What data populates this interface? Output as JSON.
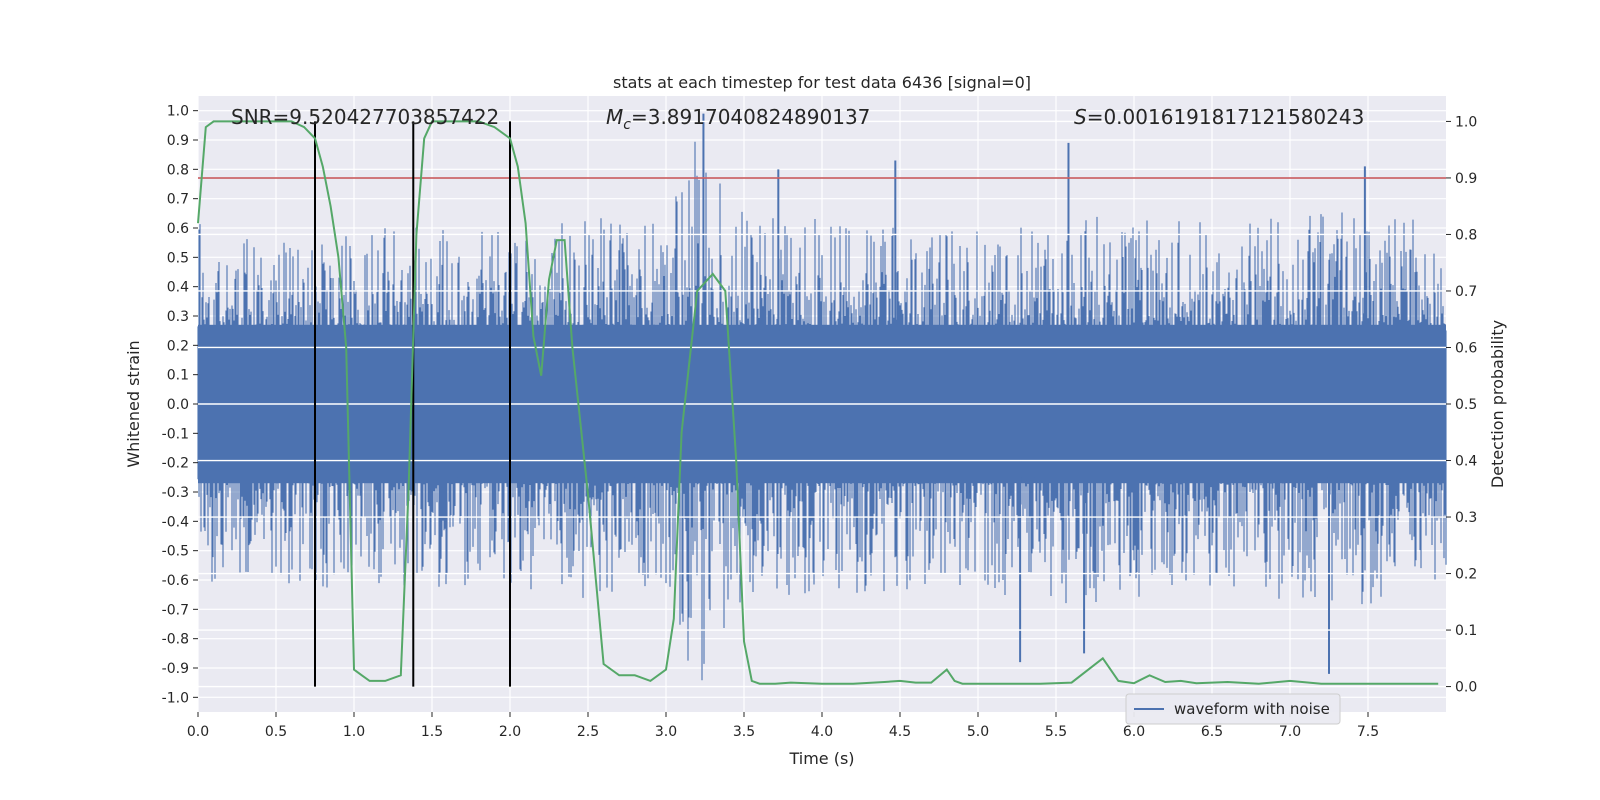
{
  "chart_data": {
    "type": "line",
    "title": "stats at each timestep for test data 6436 [signal=0]",
    "xlabel": "Time (s)",
    "ylabel_left": "Whitened strain",
    "ylabel_right": "Detection probability",
    "xlim": [
      0,
      8
    ],
    "ylim_left": [
      -1.05,
      1.05
    ],
    "ylim_right": [
      -0.045,
      1.045
    ],
    "x_ticks": [
      "0.0",
      "0.5",
      "1.0",
      "1.5",
      "2.0",
      "2.5",
      "3.0",
      "3.5",
      "4.0",
      "4.5",
      "5.0",
      "5.5",
      "6.0",
      "6.5",
      "7.0",
      "7.5"
    ],
    "y_ticks_left": [
      "1.0",
      "0.9",
      "0.8",
      "0.7",
      "0.6",
      "0.5",
      "0.4",
      "0.3",
      "0.2",
      "0.1",
      "0.0",
      "-0.1",
      "-0.2",
      "-0.3",
      "-0.4",
      "-0.5",
      "-0.6",
      "-0.7",
      "-0.8",
      "-0.9",
      "-1.0"
    ],
    "y_ticks_right": [
      "1.0",
      "0.9",
      "0.8",
      "0.7",
      "0.6",
      "0.5",
      "0.4",
      "0.3",
      "0.2",
      "0.1",
      "0.0"
    ],
    "grid": true,
    "legend_position": "lower-right",
    "annotations": {
      "snr": "SNR=9.520427703857422",
      "mc_symbol": "M",
      "mc_sub": "c",
      "mc_value": "=3.8917040824890137",
      "s_symbol": "S",
      "s_value": "=0.0016191817121580243"
    },
    "threshold": {
      "y": 0.9,
      "axis": "right",
      "color": "#c44e52"
    },
    "vertical_markers": [
      0.75,
      1.38,
      2.0
    ],
    "marker_color": "#000000",
    "series": [
      {
        "name": "waveform with noise",
        "axis": "left",
        "color": "#4c72b0",
        "note_amplitude_envelope": {
          "points": [
            [
              0.0,
              0.6
            ],
            [
              0.2,
              0.55
            ],
            [
              0.5,
              0.55
            ],
            [
              0.7,
              0.6
            ],
            [
              1.0,
              0.55
            ],
            [
              1.3,
              0.6
            ],
            [
              1.5,
              0.58
            ],
            [
              2.0,
              0.58
            ],
            [
              2.5,
              0.62
            ],
            [
              3.0,
              0.6
            ],
            [
              3.24,
              0.99
            ],
            [
              3.5,
              0.62
            ],
            [
              4.0,
              0.62
            ],
            [
              4.5,
              0.6
            ],
            [
              5.0,
              0.6
            ],
            [
              5.5,
              0.65
            ],
            [
              6.0,
              0.62
            ],
            [
              6.5,
              0.6
            ],
            [
              7.0,
              0.62
            ],
            [
              7.5,
              0.65
            ],
            [
              8.0,
              0.6
            ]
          ],
          "peaks": [
            {
              "x": 3.24,
              "y": 0.99
            },
            {
              "x": 4.47,
              "y": 0.83
            },
            {
              "x": 5.58,
              "y": 0.89
            },
            {
              "x": 7.48,
              "y": 0.81
            },
            {
              "x": 3.72,
              "y": 0.8
            },
            {
              "x": 7.25,
              "y": -0.92
            },
            {
              "x": 5.27,
              "y": -0.88
            },
            {
              "x": 5.68,
              "y": -0.85
            }
          ]
        }
      },
      {
        "name": "",
        "axis": "right",
        "color": "#55a868",
        "x": [
          0.0,
          0.05,
          0.1,
          0.2,
          0.3,
          0.5,
          0.6,
          0.68,
          0.75,
          0.8,
          0.85,
          0.9,
          0.95,
          1.0,
          1.05,
          1.1,
          1.2,
          1.3,
          1.35,
          1.4,
          1.45,
          1.5,
          1.55,
          1.6,
          1.7,
          1.8,
          1.9,
          2.0,
          2.05,
          2.1,
          2.15,
          2.2,
          2.25,
          2.3,
          2.35,
          2.4,
          2.5,
          2.6,
          2.7,
          2.8,
          2.9,
          3.0,
          3.05,
          3.1,
          3.2,
          3.3,
          3.38,
          3.45,
          3.5,
          3.55,
          3.6,
          3.7,
          3.8,
          4.0,
          4.2,
          4.4,
          4.5,
          4.6,
          4.7,
          4.8,
          4.85,
          4.9,
          5.0,
          5.2,
          5.4,
          5.6,
          5.8,
          5.9,
          6.0,
          6.1,
          6.2,
          6.3,
          6.4,
          6.6,
          6.8,
          7.0,
          7.2,
          7.4,
          7.6,
          7.8,
          7.95
        ],
        "values": [
          0.82,
          0.99,
          1.0,
          1.0,
          1.0,
          1.0,
          1.0,
          0.99,
          0.97,
          0.92,
          0.85,
          0.76,
          0.6,
          0.03,
          0.02,
          0.01,
          0.01,
          0.02,
          0.35,
          0.8,
          0.97,
          1.0,
          1.0,
          1.0,
          1.0,
          1.0,
          0.99,
          0.97,
          0.92,
          0.82,
          0.62,
          0.55,
          0.72,
          0.79,
          0.79,
          0.6,
          0.34,
          0.04,
          0.02,
          0.02,
          0.01,
          0.03,
          0.12,
          0.45,
          0.7,
          0.73,
          0.7,
          0.4,
          0.08,
          0.01,
          0.005,
          0.005,
          0.007,
          0.005,
          0.005,
          0.008,
          0.01,
          0.007,
          0.007,
          0.03,
          0.01,
          0.005,
          0.005,
          0.005,
          0.005,
          0.007,
          0.05,
          0.01,
          0.006,
          0.02,
          0.008,
          0.01,
          0.006,
          0.008,
          0.005,
          0.01,
          0.005,
          0.005,
          0.005,
          0.005,
          0.005
        ]
      }
    ]
  }
}
